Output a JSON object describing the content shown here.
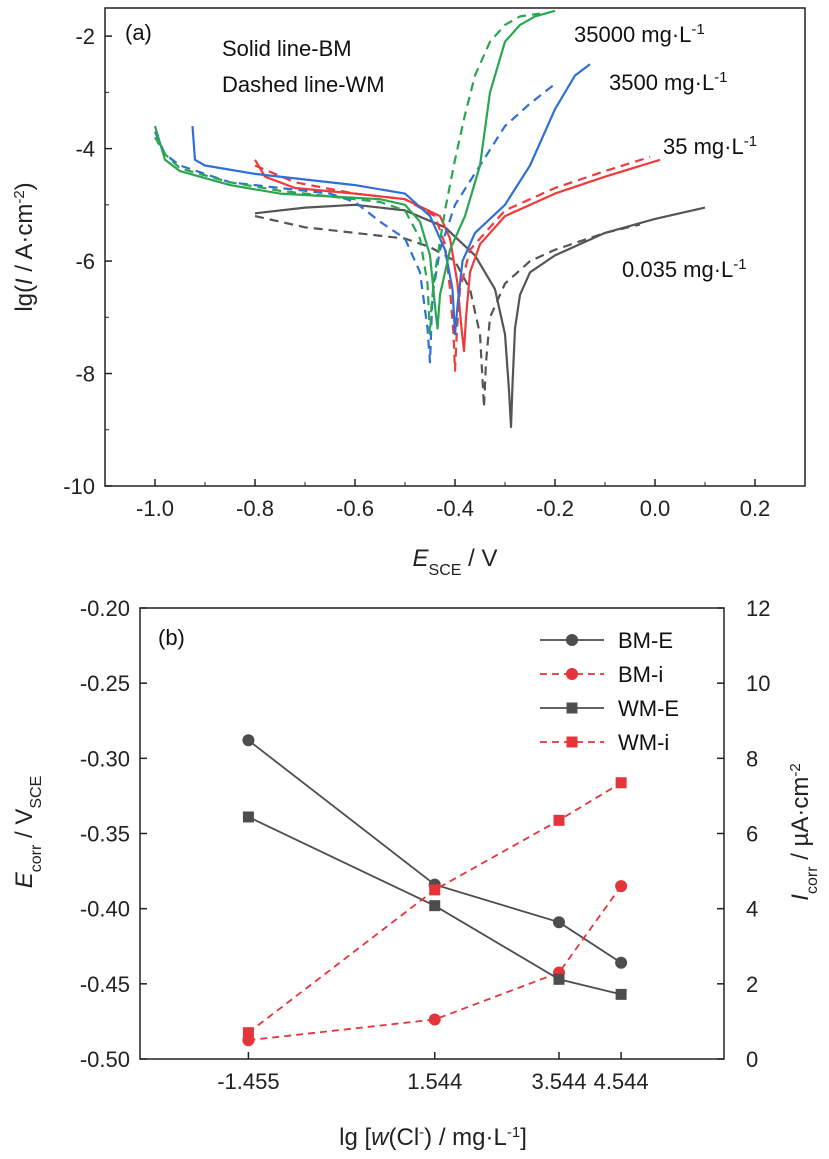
{
  "colors": {
    "black_curve": "#555555",
    "red_curve": "#ee3b3b",
    "blue_curve": "#2f6fd6",
    "green_curve": "#2aa552",
    "series_gray": "#4d4d4d",
    "series_red": "#e5343a"
  },
  "chart_data": [
    {
      "type": "line",
      "panel_label": "(a)",
      "xlabel": {
        "main": "E",
        "sub": "SCE",
        "rest": " / V"
      },
      "ylabel": "lg(I / A·cm-2)",
      "xlim": [
        -1.1,
        0.3
      ],
      "ylim": [
        -10,
        -1.5
      ],
      "xticks": [
        -1.0,
        -0.8,
        -0.6,
        -0.4,
        -0.2,
        0.0,
        0.2
      ],
      "xtick_labels": [
        "-1.0",
        "-0.8",
        "-0.6",
        "-0.4",
        "-0.2",
        "0.0",
        "0.2"
      ],
      "yticks": [
        -10,
        -8,
        -6,
        -4,
        -2
      ],
      "ytick_labels": [
        "-10",
        "-8",
        "-6",
        "-4",
        "-2"
      ],
      "notes": [
        "Solid line-BM",
        "Dashed line-WM"
      ],
      "curve_labels": [
        {
          "text": "35000 mg·L",
          "sup": "-1",
          "color": "green"
        },
        {
          "text": "3500 mg·L",
          "sup": "-1",
          "color": "blue"
        },
        {
          "text": "35 mg·L",
          "sup": "-1",
          "color": "red"
        },
        {
          "text": "0.035 mg·L",
          "sup": "-1",
          "color": "black"
        }
      ],
      "series": [
        {
          "id": "bm-0035",
          "group": "BM",
          "color": "black",
          "dash": false,
          "x": [
            -0.8,
            -0.7,
            -0.6,
            -0.5,
            -0.42,
            -0.36,
            -0.32,
            -0.3,
            -0.292,
            -0.288,
            -0.285,
            -0.28,
            -0.27,
            -0.25,
            -0.2,
            -0.1,
            0.0,
            0.1
          ],
          "y": [
            -5.15,
            -5.05,
            -5.0,
            -5.1,
            -5.4,
            -5.9,
            -6.5,
            -7.3,
            -8.3,
            -8.95,
            -8.2,
            -7.2,
            -6.6,
            -6.2,
            -5.9,
            -5.5,
            -5.25,
            -5.05
          ]
        },
        {
          "id": "wm-0035",
          "group": "WM",
          "color": "black",
          "dash": true,
          "x": [
            -0.8,
            -0.7,
            -0.6,
            -0.5,
            -0.45,
            -0.4,
            -0.37,
            -0.35,
            -0.345,
            -0.342,
            -0.338,
            -0.33,
            -0.3,
            -0.25,
            -0.2,
            -0.1,
            -0.03
          ],
          "y": [
            -5.2,
            -5.4,
            -5.5,
            -5.6,
            -5.75,
            -6.0,
            -6.5,
            -7.3,
            -8.1,
            -8.6,
            -7.8,
            -7.0,
            -6.4,
            -6.0,
            -5.8,
            -5.5,
            -5.35
          ]
        },
        {
          "id": "bm-35",
          "group": "BM",
          "color": "red",
          "dash": false,
          "x": [
            -0.8,
            -0.78,
            -0.72,
            -0.6,
            -0.5,
            -0.43,
            -0.41,
            -0.395,
            -0.387,
            -0.382,
            -0.378,
            -0.37,
            -0.35,
            -0.3,
            -0.2,
            -0.1,
            0.01
          ],
          "y": [
            -4.2,
            -4.5,
            -4.7,
            -4.8,
            -4.9,
            -5.2,
            -5.6,
            -6.4,
            -7.2,
            -7.6,
            -7.0,
            -6.2,
            -5.7,
            -5.2,
            -4.8,
            -4.5,
            -4.2
          ]
        },
        {
          "id": "wm-35",
          "group": "WM",
          "color": "red",
          "dash": true,
          "x": [
            -0.8,
            -0.72,
            -0.6,
            -0.5,
            -0.44,
            -0.42,
            -0.41,
            -0.403,
            -0.4,
            -0.396,
            -0.39,
            -0.37,
            -0.3,
            -0.2,
            -0.1,
            -0.01
          ],
          "y": [
            -4.3,
            -4.6,
            -4.8,
            -4.9,
            -5.2,
            -5.7,
            -6.5,
            -7.3,
            -7.95,
            -7.2,
            -6.5,
            -5.8,
            -5.1,
            -4.7,
            -4.4,
            -4.15
          ]
        },
        {
          "id": "bm-3500",
          "group": "BM",
          "color": "blue",
          "dash": false,
          "x": [
            -0.925,
            -0.92,
            -0.9,
            -0.8,
            -0.7,
            -0.6,
            -0.5,
            -0.45,
            -0.42,
            -0.405,
            -0.4,
            -0.395,
            -0.385,
            -0.36,
            -0.3,
            -0.25,
            -0.2,
            -0.16,
            -0.13
          ],
          "y": [
            -3.6,
            -4.2,
            -4.3,
            -4.45,
            -4.55,
            -4.65,
            -4.8,
            -5.2,
            -5.8,
            -6.5,
            -7.3,
            -6.8,
            -6.0,
            -5.5,
            -5.0,
            -4.3,
            -3.3,
            -2.7,
            -2.5
          ]
        },
        {
          "id": "wm-3500",
          "group": "WM",
          "color": "blue",
          "dash": true,
          "x": [
            -1.0,
            -0.98,
            -0.95,
            -0.85,
            -0.75,
            -0.65,
            -0.6,
            -0.55,
            -0.5,
            -0.47,
            -0.455,
            -0.45,
            -0.445,
            -0.43,
            -0.4,
            -0.35,
            -0.3,
            -0.25,
            -0.2
          ],
          "y": [
            -3.7,
            -4.1,
            -4.3,
            -4.6,
            -4.7,
            -4.8,
            -4.95,
            -5.3,
            -5.6,
            -6.2,
            -7.2,
            -7.8,
            -6.6,
            -5.8,
            -5.0,
            -4.3,
            -3.6,
            -3.2,
            -2.85
          ]
        },
        {
          "id": "bm-35000",
          "group": "BM",
          "color": "green",
          "dash": false,
          "x": [
            -1.0,
            -0.98,
            -0.95,
            -0.85,
            -0.75,
            -0.65,
            -0.55,
            -0.5,
            -0.47,
            -0.45,
            -0.44,
            -0.435,
            -0.43,
            -0.41,
            -0.38,
            -0.35,
            -0.33,
            -0.3,
            -0.27,
            -0.24,
            -0.2
          ],
          "y": [
            -3.6,
            -4.2,
            -4.4,
            -4.65,
            -4.8,
            -4.85,
            -4.9,
            -5.0,
            -5.3,
            -5.9,
            -6.8,
            -7.2,
            -6.6,
            -5.8,
            -5.2,
            -4.3,
            -3.0,
            -2.1,
            -1.8,
            -1.65,
            -1.55
          ]
        },
        {
          "id": "wm-35000",
          "group": "WM",
          "color": "green",
          "dash": true,
          "x": [
            -1.0,
            -0.98,
            -0.95,
            -0.85,
            -0.75,
            -0.65,
            -0.55,
            -0.5,
            -0.47,
            -0.455,
            -0.45,
            -0.447,
            -0.44,
            -0.42,
            -0.4,
            -0.38,
            -0.36,
            -0.33,
            -0.3,
            -0.27,
            -0.23
          ],
          "y": [
            -3.8,
            -4.1,
            -4.35,
            -4.6,
            -4.75,
            -4.85,
            -4.95,
            -5.1,
            -5.6,
            -6.4,
            -7.3,
            -6.8,
            -6.2,
            -5.1,
            -4.2,
            -3.4,
            -2.7,
            -2.1,
            -1.8,
            -1.65,
            -1.6
          ]
        }
      ]
    },
    {
      "type": "line",
      "panel_label": "(b)",
      "xlabel": {
        "pre": "lg [",
        "italic": "w",
        "mid": "(Cl",
        "sup": "-",
        "post": ") / mg·L",
        "sup2": "-1",
        "end": "]"
      },
      "ylabel_left": {
        "main": "E",
        "sub": "corr",
        "rest": " / V",
        "sub2": "SCE"
      },
      "ylabel_right": {
        "main": "I",
        "sub": "corr",
        "rest": " / µA·cm",
        "sup": "-2"
      },
      "x": [
        -1.455,
        1.544,
        3.544,
        4.544
      ],
      "xtick_labels": [
        "-1.455",
        "1.544",
        "3.544",
        "4.544"
      ],
      "xlim": [
        -3.2,
        6.2
      ],
      "ylim_left": [
        -0.5,
        -0.2
      ],
      "yticks_left": [
        "-0.50",
        "-0.45",
        "-0.40",
        "-0.35",
        "-0.30",
        "-0.25",
        "-0.20"
      ],
      "ylim_right": [
        0,
        12
      ],
      "yticks_right": [
        "0",
        "2",
        "4",
        "6",
        "8",
        "10",
        "12"
      ],
      "legend_position": "top-right",
      "series": [
        {
          "name": "BM-E",
          "axis": "left",
          "marker": "circle",
          "color": "gray",
          "dash": false,
          "values": [
            -0.288,
            -0.384,
            -0.409,
            -0.436
          ]
        },
        {
          "name": "BM-i",
          "axis": "right",
          "marker": "circle",
          "color": "red",
          "dash": true,
          "values": [
            0.5,
            1.05,
            2.3,
            4.6
          ]
        },
        {
          "name": "WM-E",
          "axis": "left",
          "marker": "square",
          "color": "gray",
          "dash": false,
          "values": [
            -0.339,
            -0.398,
            -0.447,
            -0.457
          ]
        },
        {
          "name": "WM-i",
          "axis": "right",
          "marker": "square",
          "color": "red",
          "dash": true,
          "values": [
            0.7,
            4.5,
            6.35,
            7.35
          ]
        }
      ]
    }
  ]
}
